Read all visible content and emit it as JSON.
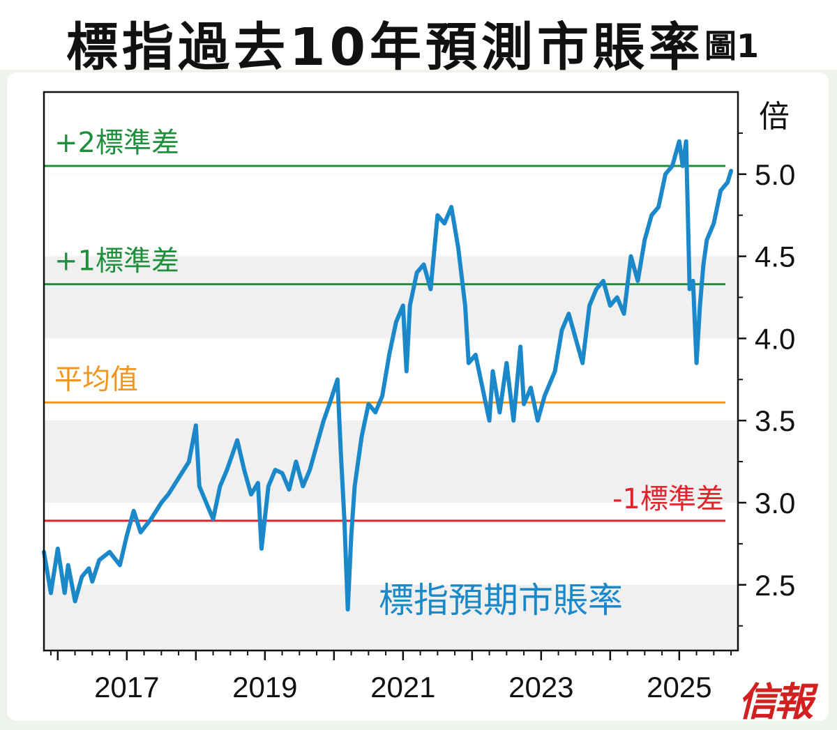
{
  "title": {
    "main": "標指過去10年預測市賬率",
    "figure_label": "圖1"
  },
  "logo": "信報",
  "chart_data": {
    "type": "line",
    "title": "標指過去10年預測市賬率",
    "ylabel": "倍",
    "xlabel": "",
    "xlim": [
      "2015-10",
      "2025-11"
    ],
    "ylim": [
      2.1,
      5.5
    ],
    "yticks": [
      2.5,
      3.0,
      3.5,
      4.0,
      4.5,
      5.0
    ],
    "xticks": [
      "2017",
      "2019",
      "2021",
      "2023",
      "2025"
    ],
    "grid": "alternating horizontal bands",
    "series_label": "標指預期市賬率",
    "series_color": "#1a88c9",
    "reference_lines": [
      {
        "label": "+2標準差",
        "value": 5.05,
        "color": "#1e8f3b"
      },
      {
        "label": "+1標準差",
        "value": 4.33,
        "color": "#1e8f3b"
      },
      {
        "label": "平均值",
        "value": 3.61,
        "color": "#f0961e"
      },
      {
        "label": "-1標準差",
        "value": 2.89,
        "color": "#e0242b"
      }
    ],
    "series": [
      {
        "name": "標指預期市賬率",
        "x": [
          2015.8,
          2015.9,
          2016.0,
          2016.1,
          2016.15,
          2016.25,
          2016.35,
          2016.45,
          2016.5,
          2016.6,
          2016.75,
          2016.9,
          2017.0,
          2017.1,
          2017.2,
          2017.35,
          2017.5,
          2017.6,
          2017.75,
          2017.9,
          2018.0,
          2018.05,
          2018.15,
          2018.25,
          2018.35,
          2018.45,
          2018.6,
          2018.7,
          2018.8,
          2018.9,
          2018.95,
          2019.05,
          2019.15,
          2019.25,
          2019.35,
          2019.45,
          2019.55,
          2019.65,
          2019.75,
          2019.85,
          2019.95,
          2020.05,
          2020.1,
          2020.15,
          2020.2,
          2020.25,
          2020.3,
          2020.4,
          2020.5,
          2020.6,
          2020.7,
          2020.8,
          2020.9,
          2021.0,
          2021.05,
          2021.1,
          2021.2,
          2021.3,
          2021.4,
          2021.5,
          2021.6,
          2021.7,
          2021.8,
          2021.9,
          2021.95,
          2022.05,
          2022.15,
          2022.25,
          2022.3,
          2022.4,
          2022.5,
          2022.6,
          2022.7,
          2022.75,
          2022.85,
          2022.95,
          2023.05,
          2023.1,
          2023.2,
          2023.3,
          2023.4,
          2023.5,
          2023.6,
          2023.7,
          2023.8,
          2023.9,
          2024.0,
          2024.1,
          2024.2,
          2024.3,
          2024.4,
          2024.5,
          2024.6,
          2024.7,
          2024.8,
          2024.9,
          2025.0,
          2025.05,
          2025.1,
          2025.15,
          2025.2,
          2025.25,
          2025.3,
          2025.35,
          2025.4,
          2025.5,
          2025.6,
          2025.7,
          2025.75
        ],
        "y": [
          2.7,
          2.45,
          2.72,
          2.45,
          2.62,
          2.4,
          2.55,
          2.6,
          2.52,
          2.65,
          2.7,
          2.62,
          2.8,
          2.95,
          2.82,
          2.9,
          3.0,
          3.05,
          3.15,
          3.25,
          3.47,
          3.1,
          3.0,
          2.9,
          3.1,
          3.2,
          3.38,
          3.2,
          3.05,
          3.12,
          2.72,
          3.1,
          3.2,
          3.18,
          3.08,
          3.25,
          3.1,
          3.2,
          3.35,
          3.5,
          3.62,
          3.75,
          3.3,
          2.9,
          2.35,
          2.8,
          3.1,
          3.4,
          3.6,
          3.55,
          3.65,
          3.9,
          4.1,
          4.2,
          3.8,
          4.2,
          4.4,
          4.45,
          4.3,
          4.75,
          4.7,
          4.8,
          4.55,
          4.2,
          3.85,
          3.9,
          3.7,
          3.5,
          3.8,
          3.55,
          3.85,
          3.5,
          3.95,
          3.6,
          3.7,
          3.5,
          3.65,
          3.7,
          3.8,
          4.05,
          4.15,
          4.0,
          3.85,
          4.2,
          4.3,
          4.35,
          4.2,
          4.25,
          4.15,
          4.5,
          4.35,
          4.6,
          4.75,
          4.8,
          5.0,
          5.05,
          5.2,
          5.05,
          5.2,
          4.3,
          4.35,
          3.85,
          4.2,
          4.45,
          4.6,
          4.7,
          4.9,
          4.95,
          5.02
        ]
      }
    ]
  }
}
